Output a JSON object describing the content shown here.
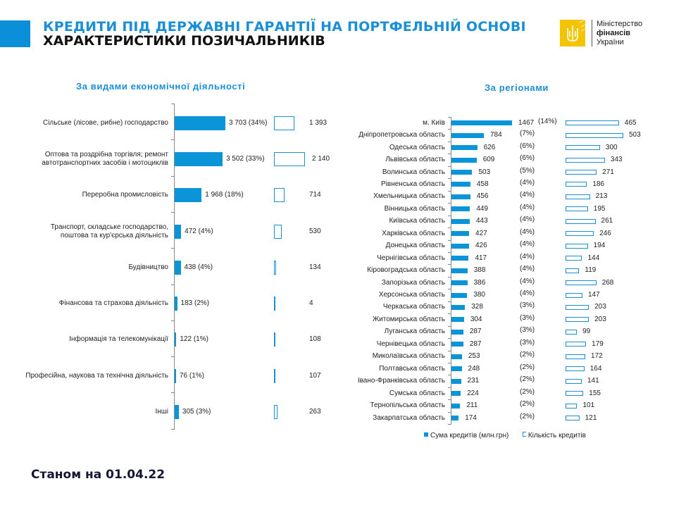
{
  "header": {
    "title_line1": "КРЕДИТИ ПІД ДЕРЖАВНІ ГАРАНТІЇ НА ПОРТФЕЛЬНІЙ ОСНОВІ",
    "title_line2": "ХАРАКТЕРИСТИКИ ПОЗИЧАЛЬНИКІВ",
    "accent_color": "#0a8fd8"
  },
  "logo": {
    "line1": "Міністерство",
    "line2": "фінансів",
    "line3": "України",
    "emblem_color": "#f5c400"
  },
  "footer": {
    "as_of": "Станом на 01.04.22"
  },
  "legend": {
    "sum_label": "Сума кредитів (млн.грн)",
    "count_label": "Кількість кредитів"
  },
  "chart_data": [
    {
      "type": "bar",
      "orientation": "horizontal",
      "title": "За видами економічної діяльності",
      "categories": [
        "Сільське (лісове, рибне) господарство",
        "Оптова та роздрібна торгівля; ремонт автотранспортних засобів і мотоциклів",
        "Переробна промисловість",
        "Транспорт, складське господарство, поштова та кур'єрська діяльність",
        "Будівництво",
        "Фінансова та страхова діяльність",
        "Інформація та телекомунікації",
        "Професійна, наукова та технічна діяльність",
        "Інші"
      ],
      "series": [
        {
          "name": "Сума кредитів (млн.грн)",
          "values": [
            3703,
            3502,
            1968,
            472,
            438,
            183,
            122,
            76,
            305
          ],
          "labels": [
            "3 703",
            "3 502",
            "1 968",
            "472",
            "438",
            "183",
            "122",
            "76",
            "305"
          ],
          "percent_labels": [
            "(34%)",
            "(33%)",
            "(18%)",
            "(4%)",
            "(4%)",
            "(2%)",
            "(1%)",
            "(1%)",
            "(3%)"
          ]
        },
        {
          "name": "Кількість кредитів",
          "values": [
            1393,
            2140,
            714,
            530,
            134,
            4,
            108,
            107,
            263
          ],
          "labels": [
            "1 393",
            "2 140",
            "714",
            "530",
            "134",
            "4",
            "108",
            "107",
            "263"
          ]
        }
      ]
    },
    {
      "type": "bar",
      "orientation": "horizontal",
      "title": "За регіонами",
      "categories": [
        "м. Київ",
        "Дніпропетровська область",
        "Одеська область",
        "Львівська область",
        "Волинська область",
        "Рівненська область",
        "Хмельницька область",
        "Вінницька область",
        "Київська область",
        "Харківська область",
        "Донецька область",
        "Чернігівська область",
        "Кіровоградська область",
        "Запорізька область",
        "Херсонська область",
        "Черкаська область",
        "Житомирська область",
        "Луганська область",
        "Чернівецька область",
        "Миколаївська область",
        "Полтавська область",
        "Івано-Франківська область",
        "Сумська область",
        "Тернопільська область",
        "Закарпатська область"
      ],
      "series": [
        {
          "name": "Сума кредитів (млн.грн)",
          "values": [
            1467,
            784,
            626,
            609,
            503,
            458,
            456,
            449,
            443,
            427,
            426,
            417,
            388,
            386,
            380,
            328,
            304,
            287,
            287,
            253,
            248,
            231,
            224,
            211,
            174
          ],
          "percent_labels": [
            "(14%)",
            "(7%)",
            "(6%)",
            "(6%)",
            "(5%)",
            "(4%)",
            "(4%)",
            "(4%)",
            "(4%)",
            "(4%)",
            "(4%)",
            "(4%)",
            "(4%)",
            "(4%)",
            "(4%)",
            "(3%)",
            "(3%)",
            "(3%)",
            "(3%)",
            "(2%)",
            "(2%)",
            "(2%)",
            "(2%)",
            "(2%)",
            "(2%)"
          ]
        },
        {
          "name": "Кількість кредитів",
          "values": [
            465,
            503,
            300,
            343,
            271,
            186,
            213,
            195,
            261,
            246,
            194,
            144,
            119,
            268,
            147,
            203,
            203,
            99,
            179,
            172,
            164,
            141,
            155,
            101,
            121
          ]
        }
      ]
    }
  ]
}
